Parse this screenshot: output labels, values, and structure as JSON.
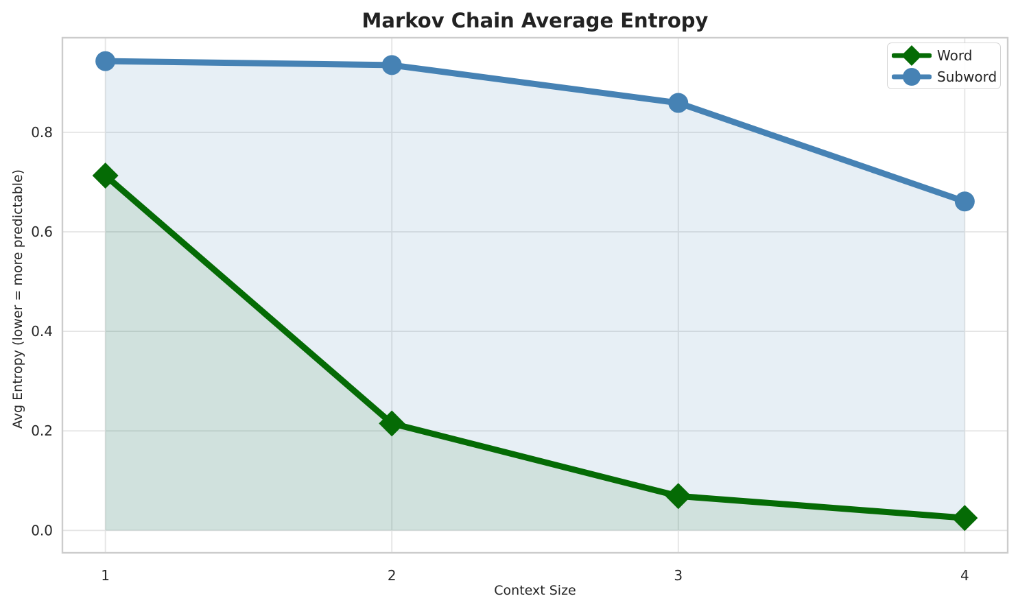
{
  "chart_data": {
    "type": "line",
    "title": "Markov Chain Average Entropy",
    "xlabel": "Context Size",
    "ylabel": "Avg Entropy (lower = more predictable)",
    "x": [
      1,
      2,
      3,
      4
    ],
    "series": [
      {
        "name": "Word",
        "values": [
          0.713,
          0.215,
          0.069,
          0.025
        ],
        "color": "#056b05",
        "marker": "diamond",
        "fill_alpha": 0.1
      },
      {
        "name": "Subword",
        "values": [
          0.943,
          0.935,
          0.859,
          0.661
        ],
        "color": "#4682b4",
        "marker": "circle",
        "fill_alpha": 0.13
      }
    ],
    "xlim": [
      0.85,
      4.15
    ],
    "ylim": [
      -0.045,
      0.99
    ],
    "xticks": [
      1,
      2,
      3,
      4
    ],
    "xtick_labels": [
      "1",
      "2",
      "3",
      "4"
    ],
    "yticks": [
      0.0,
      0.2,
      0.4,
      0.6,
      0.8
    ],
    "ytick_labels": [
      "0.0",
      "0.2",
      "0.4",
      "0.6",
      "0.8"
    ],
    "grid": true,
    "area_fill_to_zero": true,
    "legend_position": "upper right"
  },
  "colors": {
    "background": "#ffffff",
    "grid": "#e4e4e4",
    "spine": "#cccccc",
    "text": "#262626",
    "title": "#222222",
    "word_green": "#056b05",
    "subword_blue": "#4682b4"
  }
}
